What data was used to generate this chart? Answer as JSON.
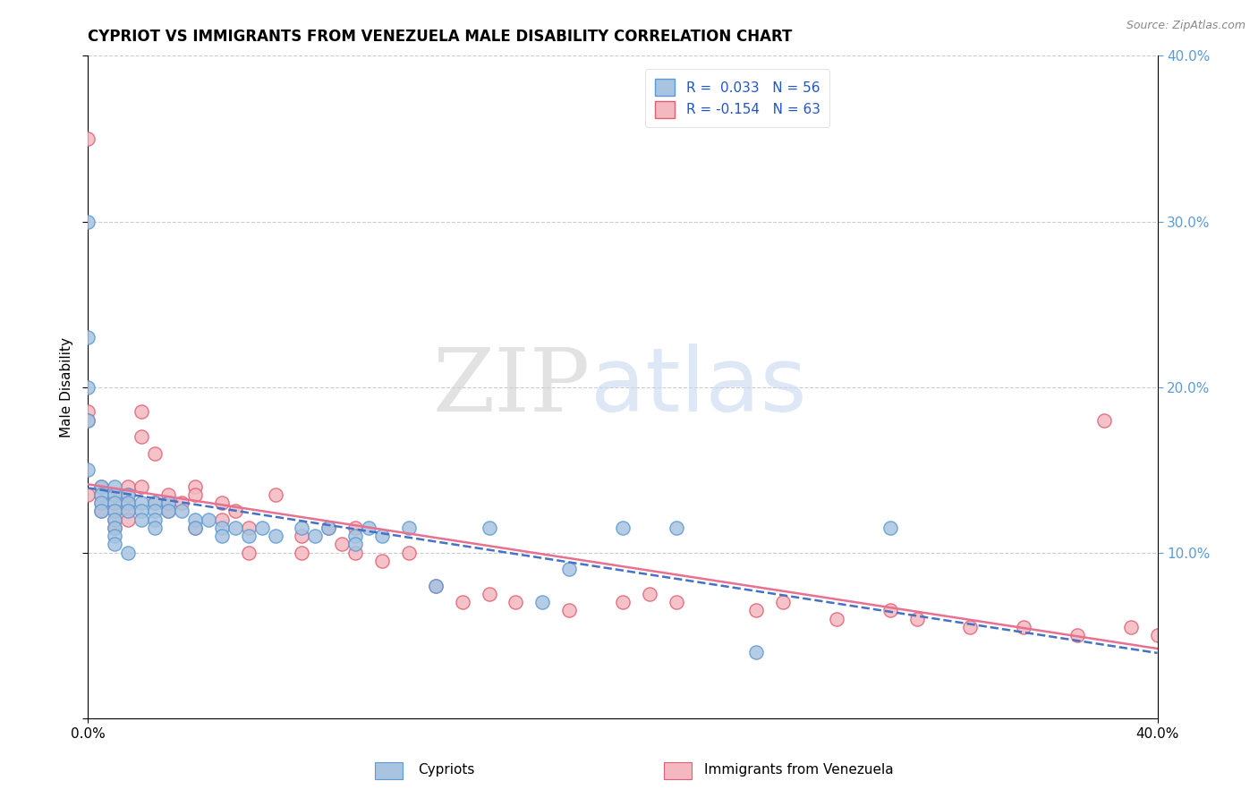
{
  "title": "CYPRIOT VS IMMIGRANTS FROM VENEZUELA MALE DISABILITY CORRELATION CHART",
  "source": "Source: ZipAtlas.com",
  "ylabel": "Male Disability",
  "xlim": [
    0.0,
    0.4
  ],
  "ylim": [
    0.0,
    0.4
  ],
  "ytick_values": [
    0.0,
    0.1,
    0.2,
    0.3,
    0.4
  ],
  "right_ytick_labels": [
    "10.0%",
    "20.0%",
    "30.0%",
    "40.0%"
  ],
  "right_ytick_values": [
    0.1,
    0.2,
    0.3,
    0.4
  ],
  "legend_r_cypriot": "0.033",
  "legend_n_cypriot": "56",
  "legend_r_venezuela": "-0.154",
  "legend_n_venezuela": "63",
  "cypriot_color": "#a8c4e0",
  "cypriot_edge": "#5b9bd5",
  "venezuela_color": "#f4b8c1",
  "venezuela_edge": "#e06070",
  "trendline_cypriot_color": "#4472c4",
  "trendline_venezuela_color": "#e87090",
  "watermark_zip": "ZIP",
  "watermark_atlas": "atlas",
  "watermark_zip_color": "#d0d0d0",
  "watermark_atlas_color": "#c8d8f0",
  "cypriot_x": [
    0.0,
    0.0,
    0.0,
    0.0,
    0.0,
    0.005,
    0.005,
    0.005,
    0.005,
    0.01,
    0.01,
    0.01,
    0.01,
    0.01,
    0.01,
    0.01,
    0.01,
    0.015,
    0.015,
    0.015,
    0.015,
    0.02,
    0.02,
    0.02,
    0.025,
    0.025,
    0.025,
    0.025,
    0.03,
    0.03,
    0.035,
    0.04,
    0.04,
    0.045,
    0.05,
    0.05,
    0.055,
    0.06,
    0.065,
    0.07,
    0.08,
    0.085,
    0.09,
    0.1,
    0.1,
    0.105,
    0.11,
    0.12,
    0.13,
    0.15,
    0.17,
    0.18,
    0.2,
    0.22,
    0.25,
    0.3
  ],
  "cypriot_y": [
    0.3,
    0.23,
    0.2,
    0.18,
    0.15,
    0.14,
    0.135,
    0.13,
    0.125,
    0.14,
    0.135,
    0.13,
    0.125,
    0.12,
    0.115,
    0.11,
    0.105,
    0.135,
    0.13,
    0.125,
    0.1,
    0.13,
    0.125,
    0.12,
    0.13,
    0.125,
    0.12,
    0.115,
    0.13,
    0.125,
    0.125,
    0.12,
    0.115,
    0.12,
    0.115,
    0.11,
    0.115,
    0.11,
    0.115,
    0.11,
    0.115,
    0.11,
    0.115,
    0.11,
    0.105,
    0.115,
    0.11,
    0.115,
    0.08,
    0.115,
    0.07,
    0.09,
    0.115,
    0.115,
    0.04,
    0.115
  ],
  "venezuela_x": [
    0.0,
    0.0,
    0.0,
    0.0,
    0.005,
    0.005,
    0.005,
    0.005,
    0.01,
    0.01,
    0.01,
    0.01,
    0.01,
    0.015,
    0.015,
    0.015,
    0.015,
    0.015,
    0.02,
    0.02,
    0.02,
    0.025,
    0.025,
    0.03,
    0.03,
    0.03,
    0.035,
    0.04,
    0.04,
    0.04,
    0.05,
    0.05,
    0.055,
    0.06,
    0.06,
    0.07,
    0.08,
    0.08,
    0.09,
    0.095,
    0.1,
    0.1,
    0.11,
    0.12,
    0.13,
    0.14,
    0.15,
    0.16,
    0.18,
    0.2,
    0.21,
    0.22,
    0.25,
    0.26,
    0.28,
    0.3,
    0.31,
    0.33,
    0.35,
    0.37,
    0.38,
    0.39,
    0.4
  ],
  "venezuela_y": [
    0.35,
    0.185,
    0.18,
    0.135,
    0.14,
    0.135,
    0.13,
    0.125,
    0.135,
    0.13,
    0.125,
    0.12,
    0.115,
    0.14,
    0.135,
    0.13,
    0.125,
    0.12,
    0.185,
    0.17,
    0.14,
    0.16,
    0.13,
    0.135,
    0.13,
    0.125,
    0.13,
    0.14,
    0.135,
    0.115,
    0.13,
    0.12,
    0.125,
    0.115,
    0.1,
    0.135,
    0.11,
    0.1,
    0.115,
    0.105,
    0.115,
    0.1,
    0.095,
    0.1,
    0.08,
    0.07,
    0.075,
    0.07,
    0.065,
    0.07,
    0.075,
    0.07,
    0.065,
    0.07,
    0.06,
    0.065,
    0.06,
    0.055,
    0.055,
    0.05,
    0.18,
    0.055,
    0.05
  ]
}
